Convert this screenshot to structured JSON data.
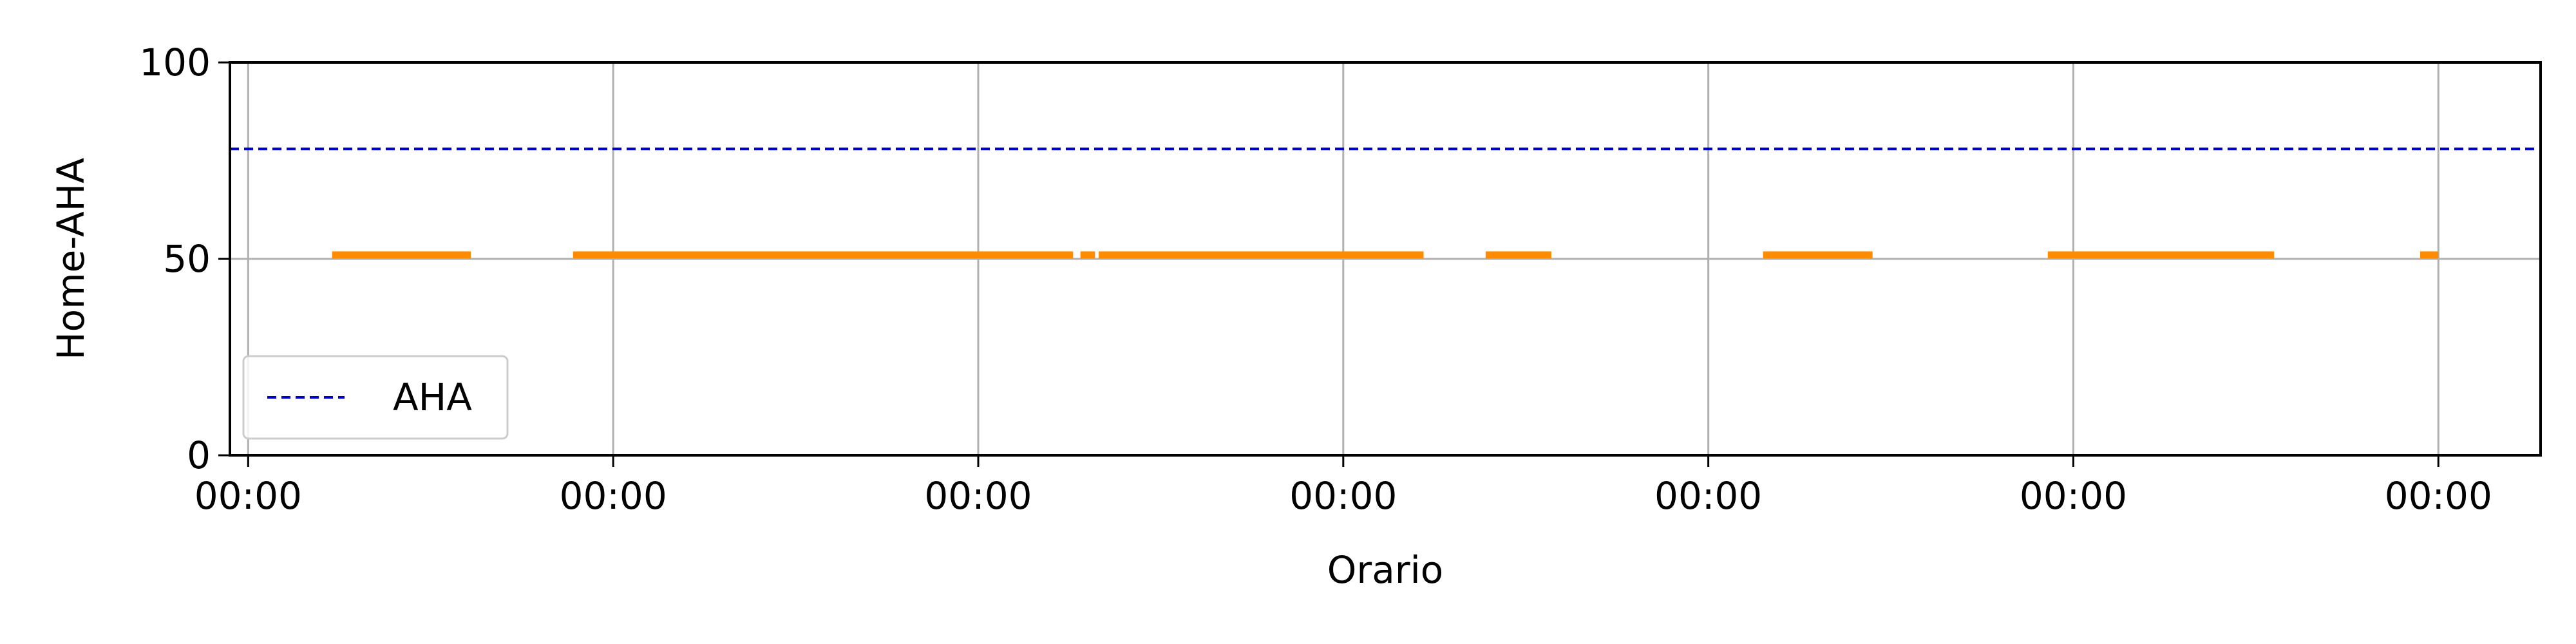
{
  "chart_data": {
    "type": "line",
    "title": "",
    "xlabel": "Orario",
    "ylabel": "Home-AHA",
    "ylim": [
      0,
      100
    ],
    "xlim": [
      -0.05,
      6.28
    ],
    "yticks": [
      0,
      50,
      100
    ],
    "xticks": [
      0,
      1,
      2,
      3,
      4,
      5,
      6
    ],
    "xtick_labels": [
      "00:00",
      "00:00",
      "00:00",
      "00:00",
      "00:00",
      "00:00",
      "00:00"
    ],
    "grid": true,
    "legend_position": "lower-left",
    "reference_line": {
      "name": "AHA",
      "y": 78,
      "style": "dashed",
      "color": "#0000cc"
    },
    "series": [
      {
        "color": "#ff8c00",
        "y": 51,
        "segments": [
          [
            0.23,
            0.61
          ],
          [
            0.89,
            2.26
          ],
          [
            2.28,
            2.32
          ],
          [
            2.33,
            3.22
          ],
          [
            3.39,
            3.57
          ],
          [
            4.15,
            4.45
          ],
          [
            4.93,
            5.55
          ],
          [
            5.95,
            6.0
          ]
        ]
      }
    ],
    "legend": [
      {
        "label": "AHA",
        "style": "dashed",
        "color": "#0000cc"
      }
    ]
  }
}
